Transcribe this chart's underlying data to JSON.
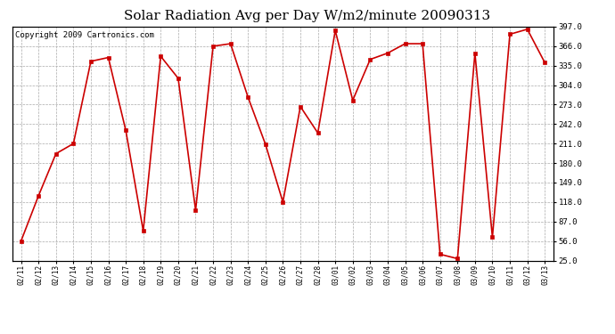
{
  "title": "Solar Radiation Avg per Day W/m2/minute 20090313",
  "copyright": "Copyright 2009 Cartronics.com",
  "dates": [
    "02/11",
    "02/12",
    "02/13",
    "02/14",
    "02/15",
    "02/16",
    "02/17",
    "02/18",
    "02/19",
    "02/20",
    "02/21",
    "02/22",
    "02/23",
    "02/24",
    "02/25",
    "02/26",
    "02/27",
    "02/28",
    "03/01",
    "03/02",
    "03/03",
    "03/04",
    "03/05",
    "03/06",
    "03/07",
    "03/08",
    "03/09",
    "03/10",
    "03/11",
    "03/12",
    "03/13"
  ],
  "values": [
    56.0,
    128.0,
    195.0,
    211.0,
    342.0,
    348.0,
    232.0,
    72.0,
    350.0,
    315.0,
    105.0,
    366.0,
    370.0,
    285.0,
    210.0,
    118.0,
    270.0,
    228.0,
    391.0,
    280.0,
    345.0,
    355.0,
    370.0,
    370.0,
    35.0,
    28.0,
    355.0,
    62.0,
    385.0,
    393.0,
    340.0
  ],
  "line_color": "#cc0000",
  "marker_color": "#cc0000",
  "bg_color": "#ffffff",
  "plot_bg_color": "#ffffff",
  "grid_color": "#aaaaaa",
  "yticks": [
    25.0,
    56.0,
    87.0,
    118.0,
    149.0,
    180.0,
    211.0,
    242.0,
    273.0,
    304.0,
    335.0,
    366.0,
    397.0
  ],
  "ylim": [
    25.0,
    397.0
  ],
  "title_fontsize": 11,
  "copyright_fontsize": 6.5
}
